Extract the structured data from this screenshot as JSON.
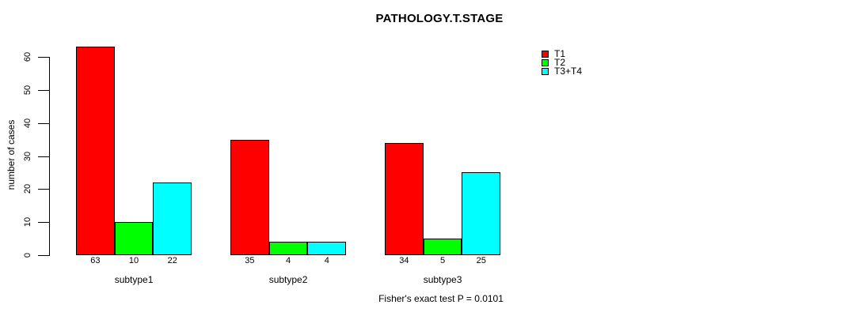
{
  "title": "PATHOLOGY.T.STAGE",
  "y_axis": {
    "label": "number of cases",
    "ticks": [
      0,
      10,
      20,
      30,
      40,
      50,
      60
    ]
  },
  "x_axis": {
    "categories": [
      "subtype1",
      "subtype2",
      "subtype3"
    ]
  },
  "legend": {
    "items": [
      {
        "label": "T1",
        "color": "#FF0000"
      },
      {
        "label": "T2",
        "color": "#00FF00"
      },
      {
        "label": "T3+T4",
        "color": "#00FFFF"
      }
    ]
  },
  "caption": "Fisher's exact test P = 0.0101",
  "colors": {
    "background": "#FFFFFF",
    "bar_border": "#000000",
    "axis": "#000000",
    "series": [
      "#FF0000",
      "#00FF00",
      "#00FFFF"
    ]
  },
  "chart_data": {
    "type": "bar",
    "title": "PATHOLOGY.T.STAGE",
    "xlabel": "",
    "ylabel": "number of cases",
    "categories": [
      "subtype1",
      "subtype2",
      "subtype3"
    ],
    "series": [
      {
        "name": "T1",
        "color": "#FF0000",
        "values": [
          63,
          35,
          34
        ]
      },
      {
        "name": "T2",
        "color": "#00FF00",
        "values": [
          10,
          4,
          5
        ]
      },
      {
        "name": "T3+T4",
        "color": "#00FFFF",
        "values": [
          22,
          4,
          25
        ]
      }
    ],
    "bar_value_labels": [
      [
        63,
        10,
        22
      ],
      [
        35,
        4,
        4
      ],
      [
        34,
        5,
        25
      ]
    ],
    "ylim": [
      0,
      60
    ],
    "yticks": [
      0,
      10,
      20,
      30,
      40,
      50,
      60
    ],
    "grid": false,
    "legend_position": "top-right-inside",
    "annotation": "Fisher's exact test P = 0.0101"
  }
}
